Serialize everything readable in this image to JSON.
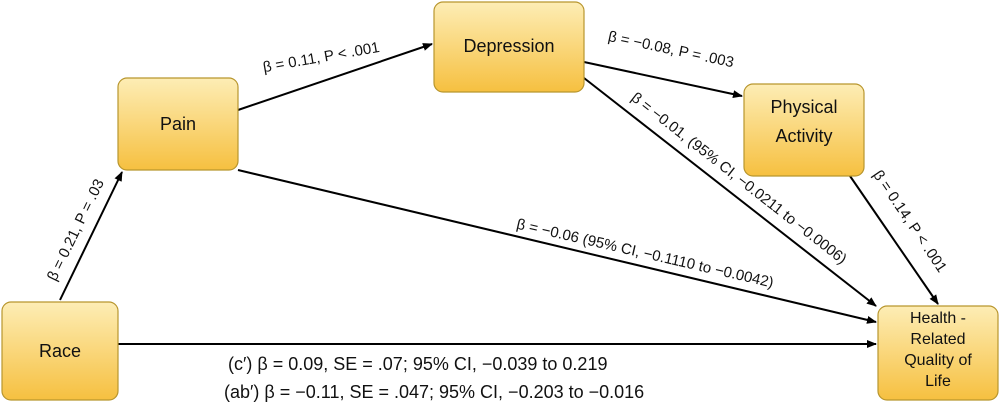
{
  "nodes": [
    {
      "label": [
        "Race"
      ]
    },
    {
      "label": [
        "Pain"
      ]
    },
    {
      "label": [
        "Depression"
      ]
    },
    {
      "label": [
        "Physical",
        "Activity"
      ]
    },
    {
      "label": [
        "Health -",
        "Related",
        "Quality of",
        "Life"
      ]
    }
  ],
  "edges": [
    {
      "label": "β = 0.21, P = .03"
    },
    {
      "label": "β = 0.11,  P < .001"
    },
    {
      "label": "β = −0.08, P = .003"
    },
    {
      "label": "β = −0.01, (95% CI, −0.0211 to −0.0006)"
    },
    {
      "label": "β = −0.06 (95% CI, −0.1110 to −0.0042)"
    },
    {
      "label": "β = 0.14, P < .001"
    }
  ],
  "direct_effect": [
    "(c′) β = 0.09, SE = .07; 95% CI, −0.039 to 0.219",
    "(ab′) β = −0.11, SE = .047; 95% CI, −0.203 to −0.016"
  ]
}
